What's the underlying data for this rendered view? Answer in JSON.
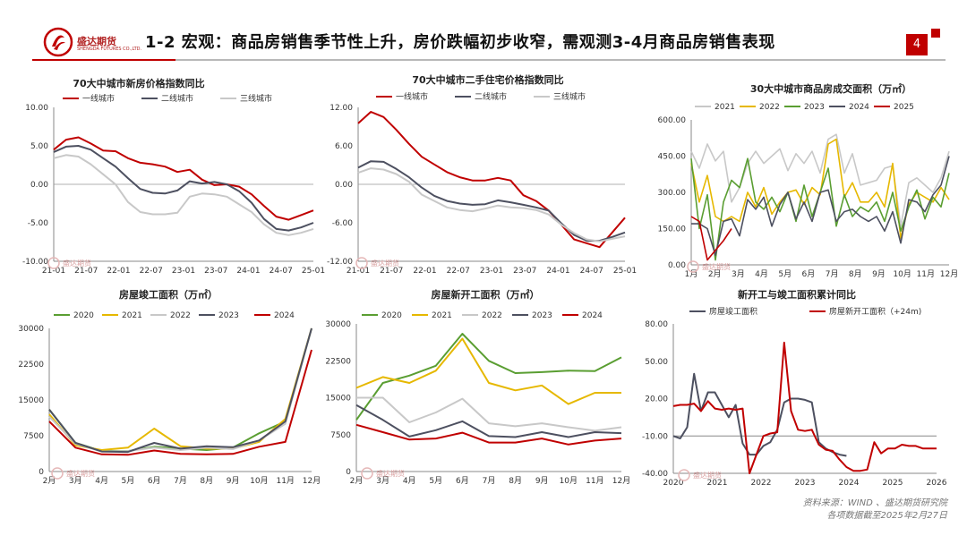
{
  "header": {
    "title": "1-2 宏观：商品房销售季节性上升，房价跌幅初步收窄，需观测3-4月商品房销售表现",
    "page": "4",
    "logo_text": "盛达期货",
    "logo_sub": "SHENGDA FUTURES CO.,LTD."
  },
  "watermark": "盛达期货",
  "source": {
    "line1": "资料来源：WIND 、盛达期货研究院",
    "line2": "各项数据截至2025年2月27日"
  },
  "colors": {
    "red": "#c00000",
    "darkgray": "#4d5060",
    "lightgray": "#c8c8c8",
    "green": "#5a9e32",
    "yellow": "#e6b800",
    "gray2": "#b8b8b8"
  },
  "chart_data": [
    {
      "type": "line",
      "title": "70大中城市新房价格指数同比",
      "ylim": [
        -10,
        10
      ],
      "yticks": [
        "10.00",
        "5.00",
        "0.00",
        "-5.00",
        "-10.00"
      ],
      "xticks": [
        "21-01",
        "21-07",
        "22-01",
        "22-07",
        "23-01",
        "23-07",
        "24-01",
        "24-07",
        "25-01"
      ],
      "series": [
        {
          "name": "一线城市",
          "color": "#c00000",
          "values": [
            4.5,
            5.8,
            6.1,
            5.3,
            4.4,
            4.3,
            3.4,
            2.8,
            2.6,
            2.3,
            1.6,
            1.9,
            0.6,
            -0.1,
            0,
            -0.3,
            -1.3,
            -2.8,
            -4.2,
            -4.6,
            -4,
            -3.4
          ]
        },
        {
          "name": "二线城市",
          "color": "#4d5060",
          "values": [
            4.2,
            4.9,
            5,
            4.5,
            3.4,
            2.3,
            0.8,
            -0.6,
            -1.1,
            -1.2,
            -0.8,
            0.4,
            0.1,
            0.3,
            0,
            -0.9,
            -2.4,
            -4.5,
            -5.8,
            -6,
            -5.6,
            -5
          ]
        },
        {
          "name": "三线城市",
          "color": "#c8c8c8",
          "values": [
            3.4,
            3.8,
            3.6,
            2.6,
            1.3,
            0,
            -2.3,
            -3.6,
            -3.9,
            -3.9,
            -3.7,
            -1.6,
            -1.2,
            -1.3,
            -1.6,
            -2.6,
            -3.6,
            -5.2,
            -6.3,
            -6.6,
            -6.3,
            -5.8
          ]
        }
      ]
    },
    {
      "type": "line",
      "title": "70大中城市二手住宅价格指数同比",
      "ylim": [
        -12,
        12
      ],
      "yticks": [
        "12.00",
        "6.00",
        "0.00",
        "-6.00",
        "-12.00"
      ],
      "xticks": [
        "21-01",
        "21-07",
        "22-01",
        "22-07",
        "23-01",
        "23-07",
        "24-01",
        "24-07",
        "25-01"
      ],
      "series": [
        {
          "name": "一线城市",
          "color": "#c00000",
          "values": [
            9.5,
            11.3,
            10.5,
            8.5,
            6.3,
            4.3,
            3.1,
            1.9,
            1.1,
            0.6,
            0.6,
            1,
            0.6,
            -1.7,
            -2.6,
            -4.1,
            -6.3,
            -8.6,
            -9.2,
            -9.8,
            -7.5,
            -5.2
          ]
        },
        {
          "name": "二线城市",
          "color": "#4d5060",
          "values": [
            2.6,
            3.6,
            3.5,
            2.4,
            1.1,
            -0.5,
            -1.8,
            -2.6,
            -3,
            -3.2,
            -3.1,
            -2.5,
            -2.8,
            -3.2,
            -3.6,
            -4.1,
            -6.1,
            -7.9,
            -8.8,
            -8.8,
            -8.2,
            -7.5
          ]
        },
        {
          "name": "三线城市",
          "color": "#c8c8c8",
          "values": [
            1.8,
            2.5,
            2.3,
            1.6,
            0.4,
            -1.6,
            -2.6,
            -3.6,
            -4,
            -4.2,
            -3.8,
            -3.3,
            -3.6,
            -3.7,
            -4,
            -4.7,
            -6.3,
            -7.6,
            -8.6,
            -8.9,
            -8.5,
            -8.1
          ]
        }
      ]
    },
    {
      "type": "line",
      "title": "30大中城市商品房成交面积（万㎡）",
      "ylim": [
        0,
        600
      ],
      "yticks": [
        "600.00",
        "450.00",
        "300.00",
        "150.00",
        "0.00"
      ],
      "xticks": [
        "1月",
        "2月",
        "3月",
        "4月",
        "5月",
        "6月",
        "7月",
        "8月",
        "9月",
        "10月",
        "11月",
        "12月"
      ],
      "series": [
        {
          "name": "2021",
          "color": "#c8c8c8",
          "values": [
            470,
            400,
            500,
            430,
            470,
            260,
            320,
            420,
            470,
            420,
            450,
            480,
            390,
            460,
            420,
            470,
            380,
            520,
            540,
            380,
            460,
            330,
            340,
            350,
            400,
            410,
            160,
            340,
            360,
            330,
            300,
            360,
            470
          ]
        },
        {
          "name": "2022",
          "color": "#e6b800",
          "values": [
            420,
            260,
            370,
            200,
            180,
            200,
            180,
            300,
            240,
            320,
            210,
            260,
            300,
            310,
            250,
            320,
            290,
            500,
            520,
            280,
            340,
            260,
            260,
            300,
            240,
            420,
            110,
            250,
            300,
            280,
            260,
            320,
            270
          ]
        },
        {
          "name": "2023",
          "color": "#5a9e32",
          "values": [
            440,
            150,
            290,
            20,
            260,
            350,
            320,
            440,
            260,
            230,
            280,
            220,
            300,
            180,
            330,
            200,
            300,
            400,
            160,
            290,
            200,
            240,
            220,
            260,
            180,
            300,
            140,
            240,
            310,
            190,
            280,
            240,
            380
          ]
        },
        {
          "name": "2024",
          "color": "#4d5060",
          "values": [
            170,
            170,
            150,
            40,
            180,
            190,
            120,
            270,
            230,
            280,
            160,
            250,
            300,
            190,
            260,
            180,
            300,
            310,
            180,
            220,
            230,
            200,
            180,
            200,
            140,
            220,
            90,
            270,
            260,
            220,
            290,
            330,
            450
          ]
        },
        {
          "name": "2025",
          "color": "#c00000",
          "values": [
            200,
            180,
            20,
            60,
            100,
            150
          ]
        }
      ]
    },
    {
      "type": "line",
      "title": "房屋竣工面积（万㎡）",
      "ylim": [
        0,
        30000
      ],
      "yticks": [
        "30000",
        "22500",
        "15000",
        "7500",
        "0"
      ],
      "xticks": [
        "2月",
        "3月",
        "4月",
        "5月",
        "6月",
        "7月",
        "8月",
        "9月",
        "10月",
        "11月",
        "12月"
      ],
      "series": [
        {
          "name": "2020",
          "color": "#5a9e32",
          "values": [
            13000,
            6000,
            4300,
            4300,
            5200,
            4800,
            4500,
            5000,
            8000,
            10500,
            30000
          ]
        },
        {
          "name": "2021",
          "color": "#e6b800",
          "values": [
            12000,
            5500,
            4500,
            5000,
            9000,
            5300,
            4800,
            4800,
            6200,
            11000,
            30000
          ]
        },
        {
          "name": "2022",
          "color": "#c8c8c8",
          "values": [
            11500,
            5800,
            4200,
            4300,
            5000,
            4500,
            5000,
            4700,
            6500,
            10000,
            30000
          ]
        },
        {
          "name": "2023",
          "color": "#4d5060",
          "values": [
            13000,
            6000,
            4200,
            4100,
            6000,
            4800,
            5300,
            5100,
            6500,
            10500,
            30000
          ]
        },
        {
          "name": "2024",
          "color": "#c00000",
          "values": [
            10500,
            5000,
            3600,
            3500,
            4400,
            3700,
            3600,
            3700,
            5200,
            6200,
            25500
          ]
        }
      ]
    },
    {
      "type": "line",
      "title": "房屋新开工面积（万㎡）",
      "ylim": [
        0,
        30000
      ],
      "yticks": [
        "30000",
        "22500",
        "15000",
        "7500",
        "0"
      ],
      "xticks": [
        "2月",
        "3月",
        "4月",
        "5月",
        "6月",
        "7月",
        "8月",
        "9月",
        "10月",
        "11月",
        "12月"
      ],
      "series": [
        {
          "name": "2020",
          "color": "#5a9e32",
          "values": [
            10500,
            18000,
            19500,
            21500,
            28000,
            22500,
            20000,
            20200,
            20500,
            20400,
            23200
          ]
        },
        {
          "name": "2021",
          "color": "#e6b800",
          "values": [
            17000,
            19200,
            18000,
            20500,
            27000,
            18000,
            16500,
            17500,
            13700,
            16000,
            16000
          ]
        },
        {
          "name": "2022",
          "color": "#c8c8c8",
          "values": [
            15000,
            15000,
            10000,
            12000,
            14800,
            9800,
            9200,
            9800,
            9000,
            8300,
            9000
          ]
        },
        {
          "name": "2023",
          "color": "#4d5060",
          "values": [
            13500,
            10500,
            7100,
            8400,
            10200,
            7200,
            7000,
            8000,
            7000,
            8000,
            7800
          ]
        },
        {
          "name": "2024",
          "color": "#c00000",
          "values": [
            9500,
            8000,
            6500,
            6700,
            7900,
            5900,
            5900,
            6700,
            5500,
            6300,
            6700
          ]
        }
      ]
    },
    {
      "type": "line",
      "title": "新开工与竣工面积累计同比",
      "ylim": [
        -40,
        80
      ],
      "yticks": [
        "80.00",
        "50.00",
        "20.00",
        "-10.00",
        "-40.00"
      ],
      "xticks": [
        "2020",
        "2021",
        "2022",
        "2023",
        "2024",
        "2025",
        "2026"
      ],
      "series": [
        {
          "name": "房屋竣工面积",
          "color": "#4d5060",
          "values": [
            -10,
            -12,
            -3,
            40,
            10,
            25,
            25,
            15,
            5,
            15,
            -16,
            -25,
            -25,
            -18,
            -15,
            -5,
            17,
            20,
            20,
            19,
            17,
            -15,
            -20,
            -23,
            -25,
            -26
          ]
        },
        {
          "name": "房屋新开工面积（+24m)",
          "color": "#c00000",
          "values": [
            14,
            15,
            15,
            16,
            10,
            18,
            12,
            11,
            12,
            11,
            12,
            -40,
            -25,
            -10,
            -8,
            -7,
            65,
            10,
            -5,
            -6,
            -5,
            -17,
            -21,
            -22,
            -29,
            -35,
            -38,
            -38,
            -37,
            -15,
            -24,
            -20,
            -20,
            -17,
            -18,
            -18,
            -20,
            -20,
            -20
          ]
        }
      ]
    }
  ]
}
